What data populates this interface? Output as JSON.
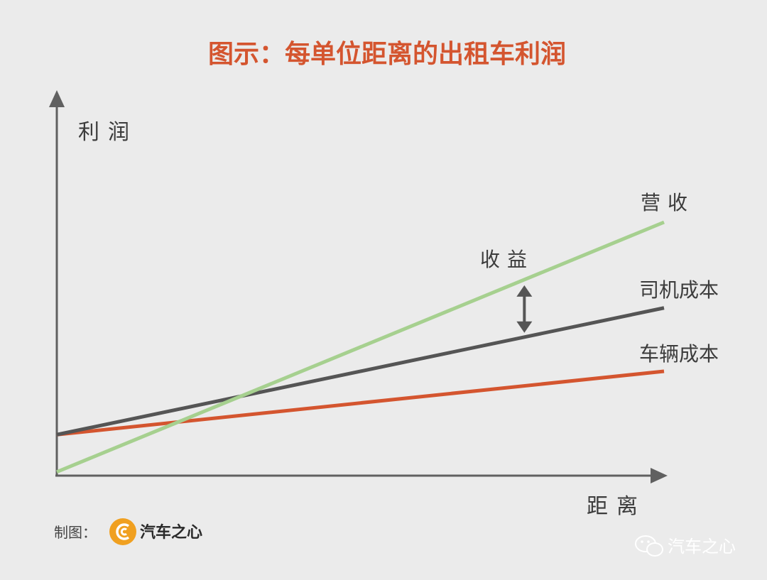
{
  "chart_data": {
    "type": "line",
    "title": "图示：每单位距离的出租车利润",
    "xlabel": "距离",
    "ylabel": "利润",
    "xlim": [
      0,
      100
    ],
    "ylim": [
      0,
      100
    ],
    "grid": false,
    "x": [
      0,
      100
    ],
    "series": [
      {
        "name": "营收",
        "values": [
          1,
          68
        ],
        "color": "#a6d08f"
      },
      {
        "name": "司机成本",
        "values": [
          11,
          45
        ],
        "color": "#555555"
      },
      {
        "name": "车辆成本",
        "values": [
          11,
          28
        ],
        "color": "#d4552f"
      }
    ],
    "annotation": {
      "text": "收益",
      "x": 77
    }
  },
  "credit": {
    "label": "制图：",
    "brand": "汽车之心",
    "logo_icon": "car-heart-logo-icon"
  },
  "watermark": {
    "text": "汽车之心",
    "icon": "wechat-icon"
  },
  "colors": {
    "background": "#ebebeb",
    "axis": "#606060",
    "title": "#d4552f",
    "logo": "#f0a020"
  }
}
